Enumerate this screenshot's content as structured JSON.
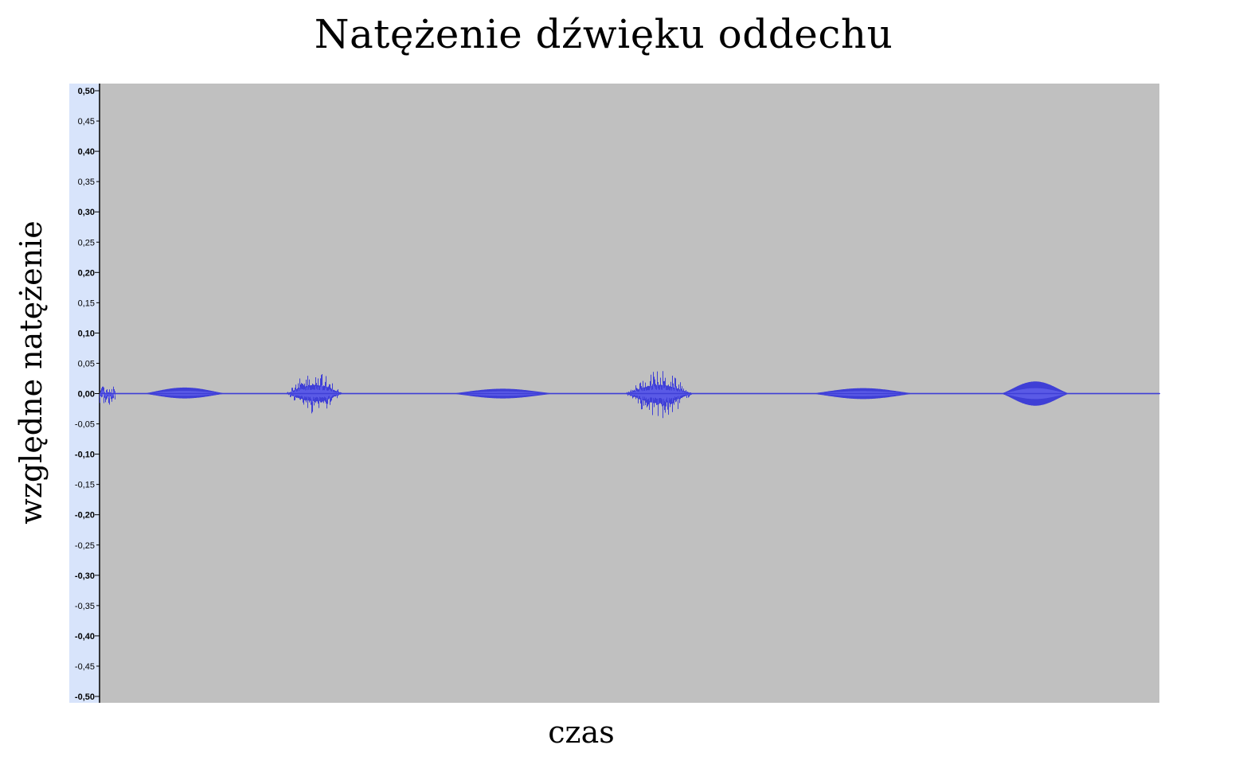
{
  "chart_data": {
    "type": "line",
    "title": "Natężenie dźwięku oddechu",
    "xlabel": "czas",
    "ylabel": "względne natężenie",
    "ylim": [
      -0.5,
      0.5
    ],
    "y_ticks": [
      0.5,
      0.45,
      0.4,
      0.35,
      0.3,
      0.25,
      0.2,
      0.15,
      0.1,
      0.05,
      0.0,
      -0.05,
      -0.1,
      -0.15,
      -0.2,
      -0.25,
      -0.3,
      -0.35,
      -0.4,
      -0.45,
      -0.5
    ],
    "y_tick_labels": [
      "0,50",
      "0,45",
      "0,40",
      "0,35",
      "0,30",
      "0,25",
      "0,20",
      "0,15",
      "0,10",
      "0,05",
      "0,00",
      "-0,05",
      "-0,10",
      "-0,15",
      "-0,20",
      "-0,25",
      "-0,30",
      "-0,35",
      "-0,40",
      "-0,45",
      "-0,50"
    ],
    "major_tick_every": 0.1,
    "grid": false,
    "x_axis_ticks_shown": false,
    "series": [
      {
        "bursts": [
          {
            "x_start": 0.04,
            "x_end": 0.12,
            "peak_pos": 0.01,
            "peak_neg": -0.008,
            "type": "breath"
          },
          {
            "x_start": 0.175,
            "x_end": 0.23,
            "peak_pos": 0.04,
            "peak_neg": -0.035,
            "type": "breath"
          },
          {
            "x_start": 0.33,
            "x_end": 0.43,
            "peak_pos": 0.008,
            "peak_neg": -0.008,
            "type": "breath"
          },
          {
            "x_start": 0.495,
            "x_end": 0.56,
            "peak_pos": 0.04,
            "peak_neg": -0.045,
            "type": "breath"
          },
          {
            "x_start": 0.67,
            "x_end": 0.77,
            "peak_pos": 0.009,
            "peak_neg": -0.009,
            "type": "breath"
          },
          {
            "x_start": 0.85,
            "x_end": 0.915,
            "peak_pos": 0.02,
            "peak_neg": -0.02,
            "type": "breath"
          }
        ]
      }
    ],
    "colors": {
      "plot_background": "#c0c0c0",
      "axis_background": "#d8e4fb",
      "waveform": "#3f3fd6",
      "waveform_core": "#5a5ae6"
    }
  }
}
